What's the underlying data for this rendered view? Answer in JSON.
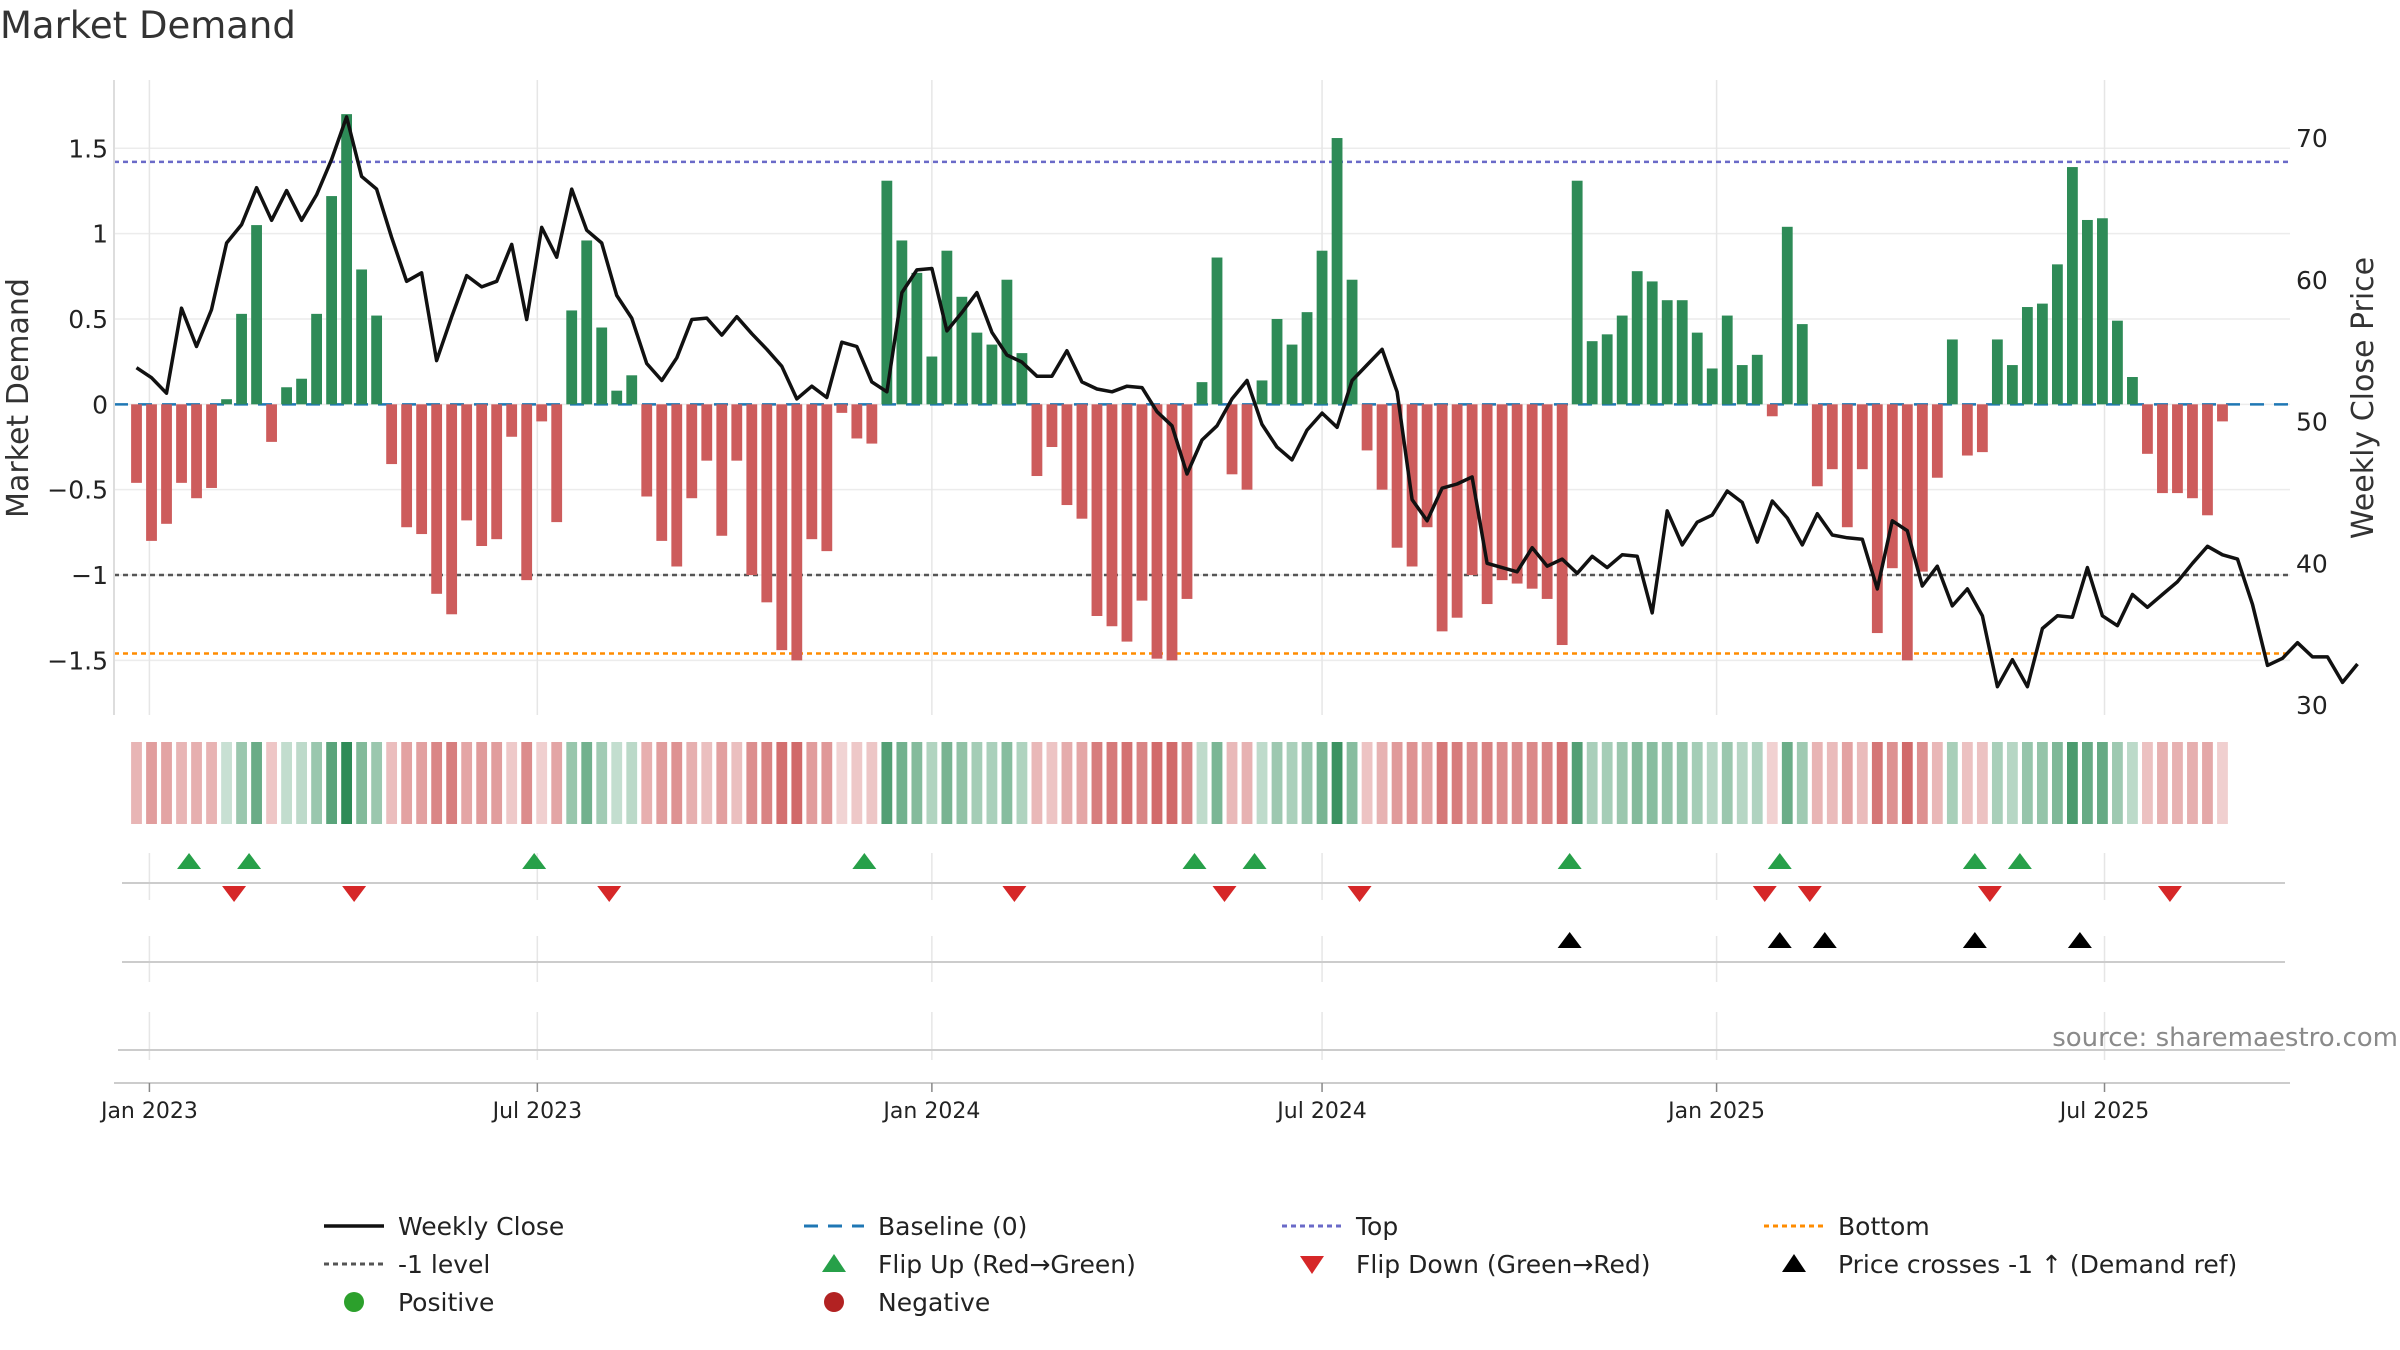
{
  "chart_data": {
    "type": "bar",
    "title": "Market Demand",
    "ylabel": "Market Demand",
    "y2label": "Weekly Close Price",
    "ylim": [
      -1.82,
      1.9
    ],
    "y2lim": [
      29.3,
      74.1
    ],
    "yticks": [
      1.5,
      1,
      0.5,
      0,
      -0.5,
      -1,
      -1.5
    ],
    "ytick_labels": [
      "1.5",
      "1",
      "0.5",
      "0",
      "−0.5",
      "−1",
      "−1.5"
    ],
    "y2ticks": [
      70,
      60,
      50,
      40,
      30
    ],
    "y2tick_labels": [
      "70",
      "60",
      "50",
      "40",
      "30"
    ],
    "x_start": "2022-12-26",
    "x_step_weeks": 1,
    "x_range_weeks": [
      -1.5,
      143.5
    ],
    "xticks": [
      {
        "label": "Jan 2023",
        "week": 0.86
      },
      {
        "label": "Jul 2023",
        "week": 26.71
      },
      {
        "label": "Jan 2024",
        "week": 53.0
      },
      {
        "label": "Jul 2024",
        "week": 79.0
      },
      {
        "label": "Jan 2025",
        "week": 105.29
      },
      {
        "label": "Jul 2025",
        "week": 131.14
      }
    ],
    "reference_lines": {
      "top": 1.42,
      "bottom": -1.46,
      "minus_one": -1.0,
      "baseline": 0
    },
    "demand": [
      -0.46,
      -0.8,
      -0.7,
      -0.46,
      -0.55,
      -0.49,
      0.03,
      0.53,
      1.05,
      -0.22,
      0.1,
      0.15,
      0.53,
      1.22,
      1.7,
      0.79,
      0.52,
      -0.35,
      -0.72,
      -0.76,
      -1.11,
      -1.23,
      -0.68,
      -0.83,
      -0.79,
      -0.19,
      -1.03,
      -0.1,
      -0.69,
      0.55,
      0.96,
      0.45,
      0.08,
      0.17,
      -0.54,
      -0.8,
      -0.95,
      -0.55,
      -0.33,
      -0.77,
      -0.33,
      -1.0,
      -1.16,
      -1.44,
      -1.5,
      -0.79,
      -0.86,
      -0.05,
      -0.2,
      -0.23,
      1.31,
      0.96,
      0.77,
      0.28,
      0.9,
      0.63,
      0.42,
      0.35,
      0.73,
      0.3,
      -0.42,
      -0.25,
      -0.59,
      -0.67,
      -1.24,
      -1.3,
      -1.39,
      -1.15,
      -1.49,
      -1.5,
      -1.14,
      0.13,
      0.86,
      -0.41,
      -0.5,
      0.14,
      0.5,
      0.35,
      0.54,
      0.9,
      1.56,
      0.73,
      -0.27,
      -0.5,
      -0.84,
      -0.95,
      -0.72,
      -1.33,
      -1.25,
      -1.0,
      -1.17,
      -1.03,
      -1.05,
      -1.08,
      -1.14,
      -1.41,
      1.31,
      0.37,
      0.41,
      0.52,
      0.78,
      0.72,
      0.61,
      0.61,
      0.42,
      0.21,
      0.52,
      0.23,
      0.29,
      -0.07,
      1.04,
      0.47,
      -0.48,
      -0.38,
      -0.72,
      -0.38,
      -1.34,
      -0.96,
      -1.5,
      -0.98,
      -0.43,
      0.38,
      -0.3,
      -0.28,
      0.38,
      0.23,
      0.57,
      0.59,
      0.82,
      1.39,
      1.08,
      1.09,
      0.49,
      0.16,
      -0.29,
      -0.52,
      -0.52,
      -0.55,
      -0.65,
      -0.1
    ],
    "price": [
      53.8,
      53.1,
      52.0,
      58.0,
      55.3,
      57.9,
      62.6,
      63.9,
      66.5,
      64.2,
      66.3,
      64.2,
      66.0,
      68.5,
      71.5,
      67.3,
      66.4,
      63.0,
      59.9,
      60.5,
      54.3,
      57.4,
      60.3,
      59.5,
      59.9,
      62.5,
      57.2,
      63.7,
      61.6,
      66.4,
      63.5,
      62.6,
      58.9,
      57.3,
      54.1,
      52.9,
      54.5,
      57.2,
      57.3,
      56.1,
      57.4,
      56.2,
      55.1,
      53.9,
      51.6,
      52.5,
      51.7,
      55.6,
      55.3,
      52.8,
      52.1,
      59.1,
      60.7,
      60.8,
      56.4,
      57.7,
      59.1,
      56.3,
      54.7,
      54.2,
      53.2,
      53.2,
      55.0,
      52.8,
      52.3,
      52.1,
      52.5,
      52.4,
      50.7,
      49.7,
      46.3,
      48.7,
      49.7,
      51.6,
      52.9,
      49.8,
      48.2,
      47.3,
      49.4,
      50.6,
      49.6,
      52.9,
      54.0,
      55.1,
      52.1,
      44.5,
      43.0,
      45.3,
      45.6,
      46.1,
      40.0,
      39.7,
      39.4,
      41.1,
      39.8,
      40.3,
      39.3,
      40.5,
      39.7,
      40.6,
      40.5,
      36.5,
      43.7,
      41.3,
      42.9,
      43.4,
      45.1,
      44.3,
      41.5,
      44.4,
      43.2,
      41.3,
      43.5,
      42.0,
      41.8,
      41.7,
      38.2,
      43.0,
      42.3,
      38.4,
      39.8,
      37.0,
      38.2,
      36.3,
      31.3,
      33.2,
      31.3,
      35.4,
      36.3,
      36.2,
      39.7,
      36.3,
      35.6,
      37.8,
      36.9,
      37.8,
      38.7,
      40.0,
      41.2,
      40.6,
      40.3,
      37.1,
      32.8,
      33.3,
      34.4,
      33.4,
      33.4,
      31.6,
      32.9
    ],
    "flip_up_weeks": [
      3.5,
      7.5,
      26.5,
      48.5,
      70.5,
      74.5,
      95.5,
      109.5,
      122.5,
      125.5
    ],
    "flip_down_weeks": [
      6.5,
      14.5,
      31.5,
      58.5,
      72.5,
      81.5,
      108.5,
      111.5,
      123.5,
      135.5
    ],
    "price_cross_weeks": [
      95.5,
      109.5,
      112.5,
      122.5,
      129.5
    ],
    "colors": {
      "positive": "#2e8b57",
      "negative": "#cd5c5c",
      "price": "#111111",
      "baseline": "#1f77b4",
      "top": "#6a6ac8",
      "bottom": "#ff8c00",
      "minus_one": "#555555",
      "flip_up": "#27a049",
      "flip_down": "#d62728",
      "cross": "#000000",
      "legend_positive": "#2ca02c",
      "legend_negative": "#b22222"
    }
  },
  "source_text": "source: sharemaestro.com",
  "legend": {
    "weekly_close": "Weekly Close",
    "baseline": "Baseline (0)",
    "top": "Top",
    "bottom": "Bottom",
    "minus_one": "-1 level",
    "flip_up": "Flip Up (Red→Green)",
    "flip_down": "Flip Down (Green→Red)",
    "price_cross": "Price crosses -1 ↑ (Demand ref)",
    "positive": "Positive",
    "negative": "Negative"
  }
}
